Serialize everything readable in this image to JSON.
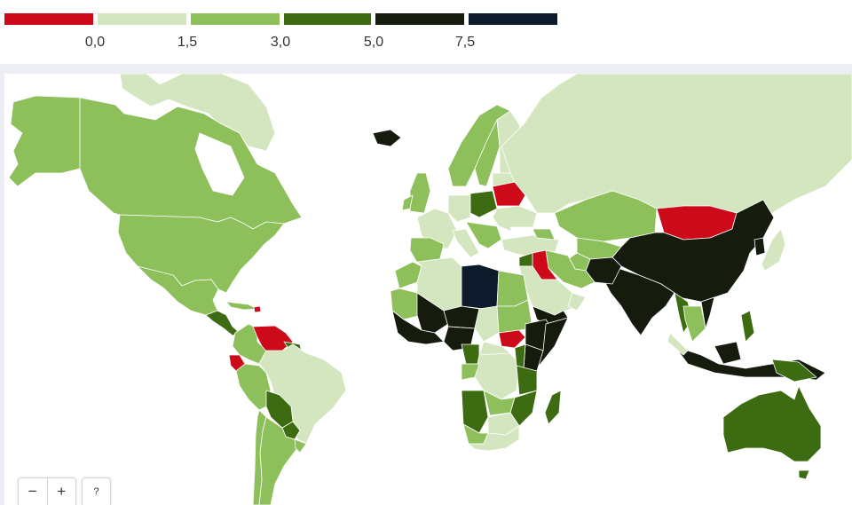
{
  "legend": {
    "colors": [
      "#cc0a1a",
      "#d4e6bf",
      "#8dbf5a",
      "#3d6b12",
      "#151b0d",
      "#0c1a2b"
    ],
    "ticks": [
      "0,0",
      "1,5",
      "3,0",
      "5,0",
      "7,5"
    ]
  },
  "map": {
    "ocean_color": "#ffffff"
  },
  "controls": {
    "zoom_out": "−",
    "zoom_in": "+",
    "help": "?"
  }
}
